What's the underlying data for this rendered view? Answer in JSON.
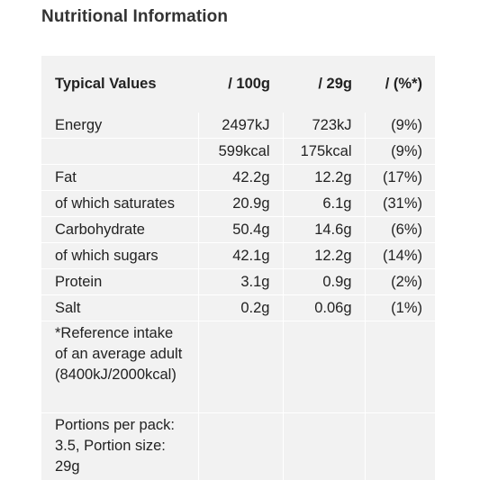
{
  "heading": "Nutritional Information",
  "table": {
    "headers": [
      "Typical Values",
      "/ 100g",
      "/ 29g",
      "/ (%*)"
    ],
    "rows": [
      {
        "label": "Energy",
        "per100": "2497kJ",
        "perPortion": "723kJ",
        "ri": "(9%)"
      },
      {
        "label": "",
        "per100": "599kcal",
        "perPortion": "175kcal",
        "ri": "(9%)"
      },
      {
        "label": "Fat",
        "per100": "42.2g",
        "perPortion": "12.2g",
        "ri": "(17%)"
      },
      {
        "label": "of which saturates",
        "per100": "20.9g",
        "perPortion": "6.1g",
        "ri": "(31%)"
      },
      {
        "label": "Carbohydrate",
        "per100": "50.4g",
        "perPortion": "14.6g",
        "ri": "(6%)"
      },
      {
        "label": "of which sugars",
        "per100": "42.1g",
        "perPortion": "12.2g",
        "ri": "(14%)"
      },
      {
        "label": "Protein",
        "per100": "3.1g",
        "perPortion": "0.9g",
        "ri": "(2%)"
      },
      {
        "label": "Salt",
        "per100": "0.2g",
        "perPortion": "0.06g",
        "ri": "(1%)"
      }
    ],
    "reference_note": "*Reference intake of an average adult (8400kJ/2000kcal)",
    "portion_note": "Portions per pack: 3.5, Portion size: 29g"
  }
}
